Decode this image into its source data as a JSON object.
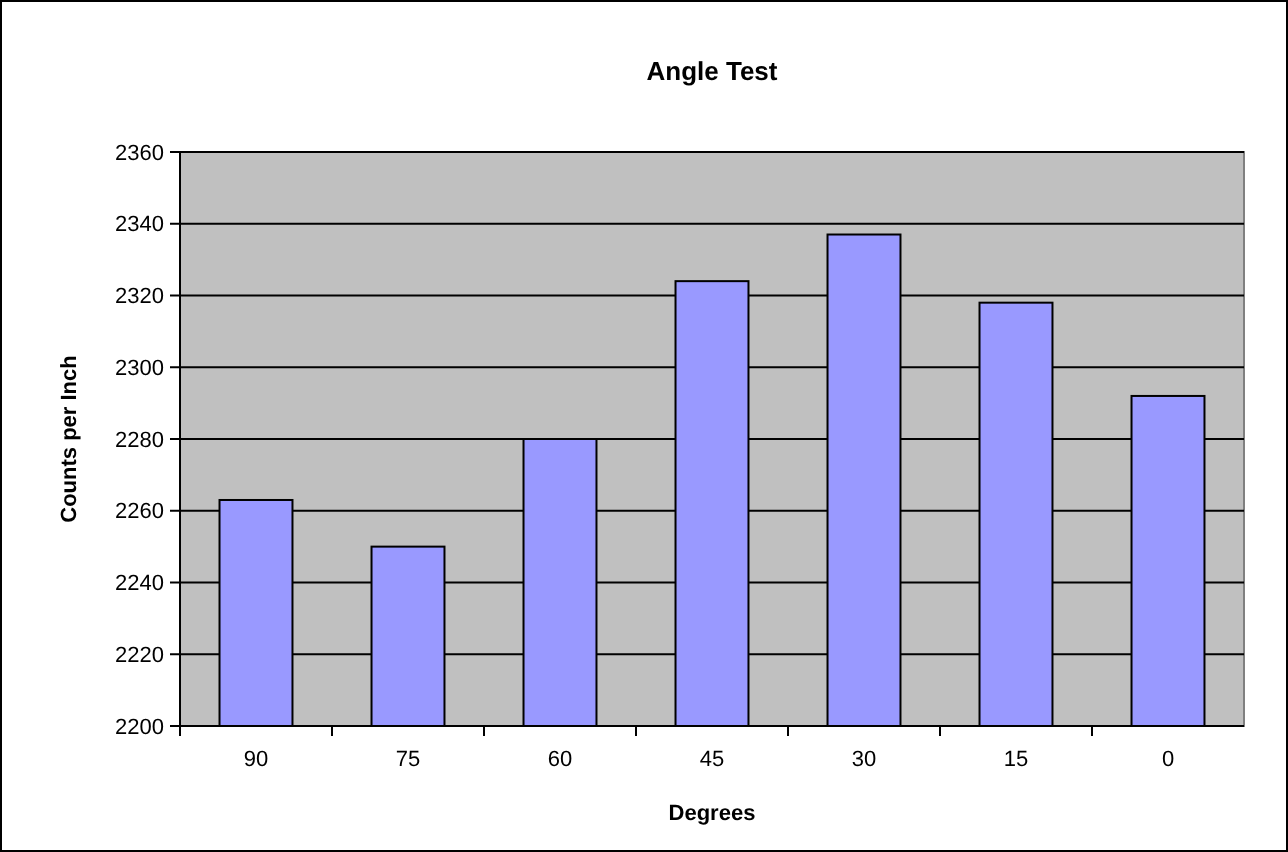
{
  "chart_data": {
    "type": "bar",
    "title": "Angle Test",
    "xlabel": "Degrees",
    "ylabel": "Counts per Inch",
    "categories": [
      "90",
      "75",
      "60",
      "45",
      "30",
      "15",
      "0"
    ],
    "values": [
      2263,
      2250,
      2280,
      2324,
      2337,
      2318,
      2292
    ],
    "color": "#9999ff",
    "ylim": [
      2200,
      2360
    ],
    "yticks": [
      2200,
      2220,
      2240,
      2260,
      2280,
      2300,
      2320,
      2340,
      2360
    ],
    "grid": "y"
  }
}
